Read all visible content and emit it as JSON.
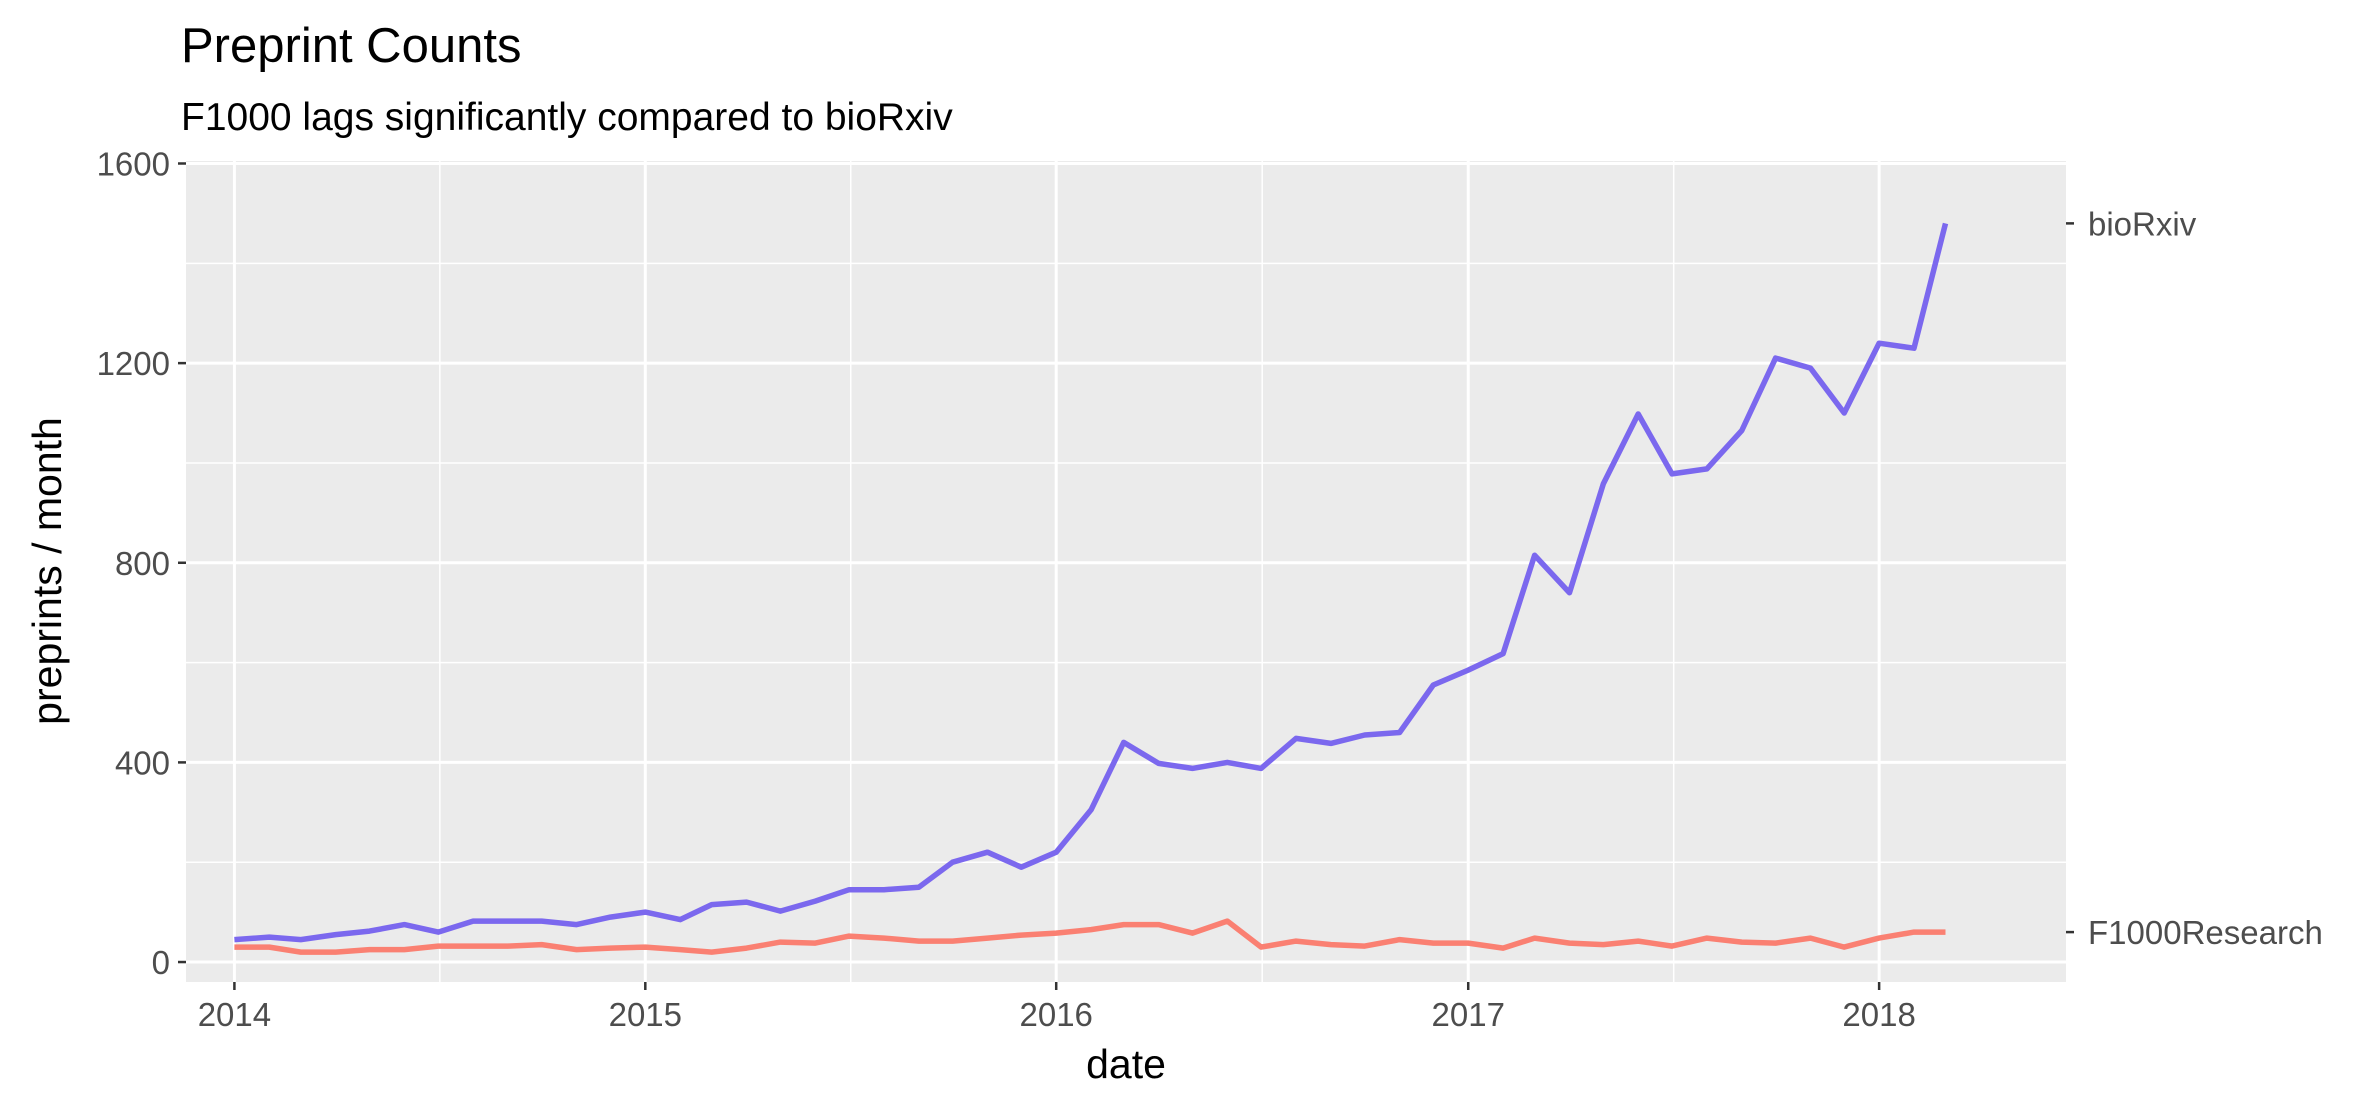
{
  "chart_data": {
    "type": "line",
    "title": "Preprint Counts",
    "subtitle": "F1000 lags significantly compared to bioRxiv",
    "xlabel": "date",
    "ylabel": "preprints / month",
    "xlim": [
      "2013-11-19",
      "2018-06-16"
    ],
    "ylim": [
      -40,
      1605
    ],
    "x_ticks": [
      {
        "label": "2014",
        "value": "2014-01-01"
      },
      {
        "label": "2015",
        "value": "2015-01-01"
      },
      {
        "label": "2016",
        "value": "2016-01-01"
      },
      {
        "label": "2017",
        "value": "2017-01-01"
      },
      {
        "label": "2018",
        "value": "2018-01-01"
      }
    ],
    "y_ticks": [
      0,
      400,
      800,
      1200,
      1600
    ],
    "grid": true,
    "legend": "direct labels at right of panel",
    "dates": [
      "2014-01",
      "2014-02",
      "2014-03",
      "2014-04",
      "2014-05",
      "2014-06",
      "2014-07",
      "2014-08",
      "2014-09",
      "2014-10",
      "2014-11",
      "2014-12",
      "2015-01",
      "2015-02",
      "2015-03",
      "2015-04",
      "2015-05",
      "2015-06",
      "2015-07",
      "2015-08",
      "2015-09",
      "2015-10",
      "2015-11",
      "2015-12",
      "2016-01",
      "2016-02",
      "2016-03",
      "2016-04",
      "2016-05",
      "2016-06",
      "2016-07",
      "2016-08",
      "2016-09",
      "2016-10",
      "2016-11",
      "2016-12",
      "2017-01",
      "2017-02",
      "2017-03",
      "2017-04",
      "2017-05",
      "2017-06",
      "2017-07",
      "2017-08",
      "2017-09",
      "2017-10",
      "2017-11",
      "2017-12",
      "2018-01",
      "2018-02",
      "2018-03"
    ],
    "series": [
      {
        "name": "bioRxiv",
        "color": "#7b68ee",
        "label_value": 1480,
        "values": [
          45,
          50,
          45,
          55,
          62,
          75,
          60,
          82,
          82,
          82,
          75,
          90,
          100,
          85,
          115,
          120,
          102,
          122,
          145,
          145,
          150,
          200,
          220,
          190,
          220,
          305,
          440,
          398,
          388,
          400,
          388,
          448,
          438,
          455,
          460,
          555,
          585,
          618,
          815,
          740,
          958,
          1098,
          978,
          988,
          1065,
          1210,
          1190,
          1100,
          1240,
          1230,
          1480
        ]
      },
      {
        "name": "F1000Research",
        "color": "#fa8072",
        "label_value": 60,
        "values": [
          30,
          30,
          20,
          20,
          25,
          25,
          32,
          32,
          32,
          35,
          25,
          28,
          30,
          25,
          20,
          28,
          40,
          38,
          52,
          48,
          42,
          42,
          48,
          54,
          58,
          65,
          75,
          75,
          58,
          82,
          30,
          42,
          35,
          32,
          45,
          38,
          38,
          28,
          48,
          38,
          35,
          42,
          32,
          48,
          40,
          38,
          48,
          30,
          48,
          60,
          60
        ]
      }
    ]
  }
}
